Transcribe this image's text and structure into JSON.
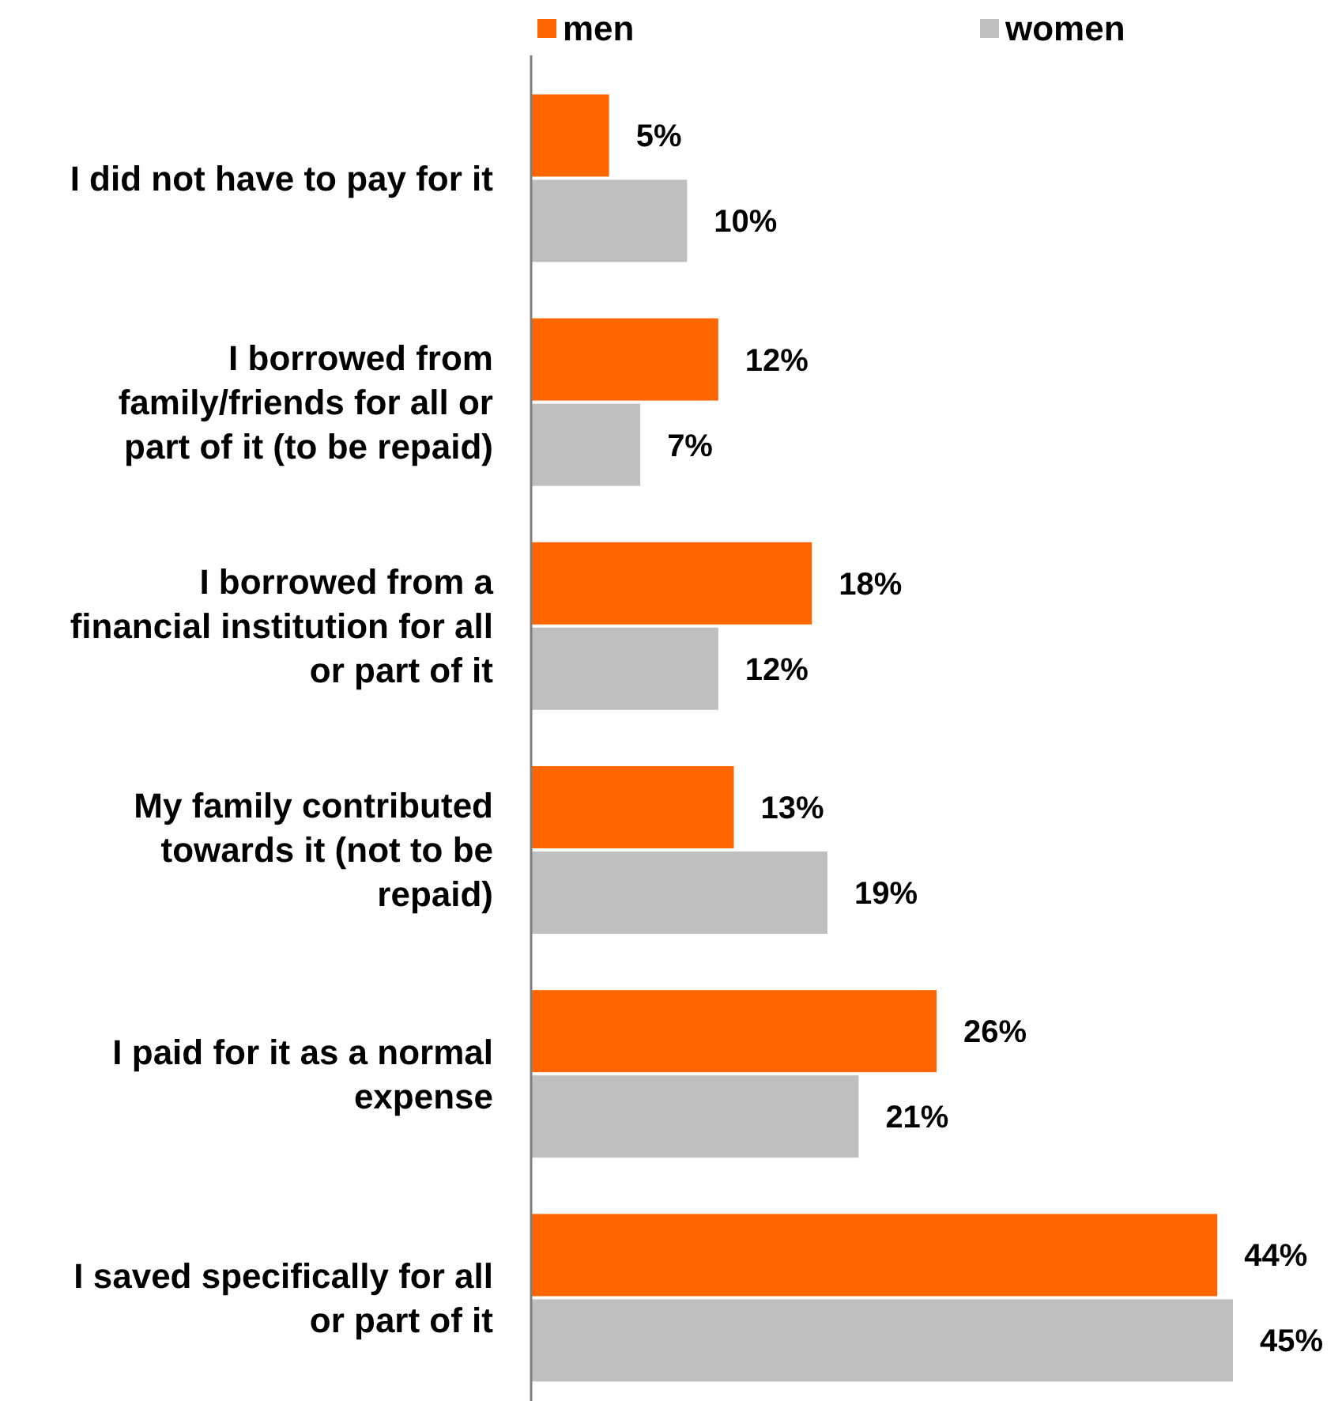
{
  "chart_data": {
    "type": "bar",
    "orientation": "horizontal",
    "legend": "top",
    "categories": [
      "I did not have to pay for it",
      "I borrowed from family/friends for all or part of it (to be repaid)",
      "I borrowed from a financial institution for all or part of it",
      "My family contributed towards it (not to be repaid)",
      "I paid for it as a normal expense",
      "I saved specifically for all or part of it"
    ],
    "series": [
      {
        "name": "men",
        "color": "#ff6600",
        "values": [
          5,
          12,
          18,
          13,
          26,
          44
        ],
        "value_labels": [
          "5%",
          "12%",
          "18%",
          "13%",
          "26%",
          "44%"
        ]
      },
      {
        "name": "women",
        "color": "#bfbfbf",
        "values": [
          10,
          7,
          12,
          19,
          21,
          45
        ],
        "value_labels": [
          "10%",
          "7%",
          "12%",
          "19%",
          "21%",
          "45%"
        ]
      }
    ]
  }
}
